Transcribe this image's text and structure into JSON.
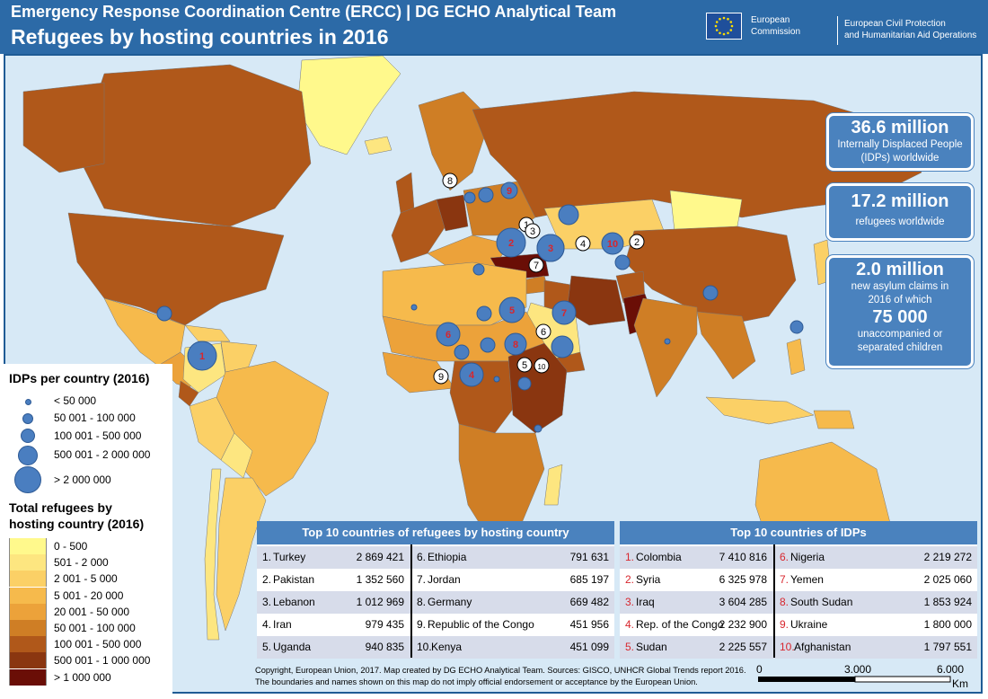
{
  "header": {
    "supertitle": "Emergency Response Coordination Centre (ERCC) | DG ECHO Analytical Team",
    "title": "Refugees by hosting countries in 2016",
    "ec_line1": "European",
    "ec_line2": "Commission",
    "echo_line1": "European Civil Protection",
    "echo_line2": "and Humanitarian Aid Operations"
  },
  "stats": {
    "idp_total": "36.6 million",
    "idp_desc1": "Internally Displaced People",
    "idp_desc2": "(IDPs) worldwide",
    "refugee_total": "17.2 million",
    "refugee_desc": "refugees worldwide",
    "asylum_total": "2.0 million",
    "asylum_desc1": "new asylum claims in",
    "asylum_desc2": "2016 of which",
    "children_total": "75 000",
    "children_desc1": "unaccompanied or",
    "children_desc2": "separated children"
  },
  "legend": {
    "idp_title": "IDPs per country (2016)",
    "idp_classes": [
      "< 50 000",
      "50 001 - 100 000",
      "100 001 - 500 000",
      "500 001 - 2 000 000",
      "> 2 000 000"
    ],
    "ref_title_1": "Total refugees by",
    "ref_title_2": "hosting country (2016)",
    "ref_classes": [
      {
        "label": "0 - 500",
        "color": "#fff98c"
      },
      {
        "label": "501 - 2 000",
        "color": "#fde680"
      },
      {
        "label": "2 001 - 5 000",
        "color": "#fbd066"
      },
      {
        "label": "5 001 - 20 000",
        "color": "#f6ba4c"
      },
      {
        "label": "20 001 - 50 000",
        "color": "#eca23a"
      },
      {
        "label": "50 001 - 100 000",
        "color": "#cf7e25"
      },
      {
        "label": "100 001 - 500 000",
        "color": "#b0581a"
      },
      {
        "label": "500 001 - 1 000 000",
        "color": "#8a3610"
      },
      {
        "label": "> 1 000 000",
        "color": "#6a0e06"
      }
    ]
  },
  "refugee_table": {
    "title": "Top 10 countries of refugees by hosting country",
    "rows": [
      {
        "rank": "1.",
        "country": "Turkey",
        "value": "2 869 421"
      },
      {
        "rank": "2.",
        "country": "Pakistan",
        "value": "1 352 560"
      },
      {
        "rank": "3.",
        "country": "Lebanon",
        "value": "1 012 969"
      },
      {
        "rank": "4.",
        "country": "Iran",
        "value": "979 435"
      },
      {
        "rank": "5.",
        "country": "Uganda",
        "value": "940 835"
      },
      {
        "rank": "6.",
        "country": "Ethiopia",
        "value": "791 631"
      },
      {
        "rank": "7.",
        "country": "Jordan",
        "value": "685 197"
      },
      {
        "rank": "8.",
        "country": "Germany",
        "value": "669 482"
      },
      {
        "rank": "9.",
        "country": "Republic of the Congo",
        "value": "451 956"
      },
      {
        "rank": "10.",
        "country": "Kenya",
        "value": "451 099"
      }
    ]
  },
  "idp_table": {
    "title": "Top 10 countries of IDPs",
    "rows": [
      {
        "rank": "1.",
        "country": "Colombia",
        "value": "7 410 816"
      },
      {
        "rank": "2.",
        "country": "Syria",
        "value": "6 325 978"
      },
      {
        "rank": "3.",
        "country": "Iraq",
        "value": "3 604 285"
      },
      {
        "rank": "4.",
        "country": "Rep. of the Congo",
        "value": "2 232 900"
      },
      {
        "rank": "5.",
        "country": "Sudan",
        "value": "2 225 557"
      },
      {
        "rank": "6.",
        "country": "Nigeria",
        "value": "2 219 272"
      },
      {
        "rank": "7.",
        "country": "Yemen",
        "value": "2 025 060"
      },
      {
        "rank": "8.",
        "country": "South Sudan",
        "value": "1 853 924"
      },
      {
        "rank": "9.",
        "country": "Ukraine",
        "value": "1 800 000"
      },
      {
        "rank": "10.",
        "country": "Afghanistan",
        "value": "1 797 551"
      }
    ]
  },
  "copyright": {
    "line1": "Copyright, European Union, 2017. Map created by DG ECHO Analytical Team.  Sources: GISCO, UNHCR Global Trends report 2016.",
    "line2": "The boundaries and names shown on this map do not imply official endorsement or acceptance  by the European Union."
  },
  "scale": {
    "t0": "0",
    "t1": "3.000",
    "t2": "6.000",
    "unit": "Km"
  },
  "map_markers": {
    "refugee_ranks": [
      "1",
      "2",
      "3",
      "4",
      "5",
      "6",
      "7",
      "8",
      "9",
      "10"
    ],
    "idp_ranks": [
      "1",
      "2",
      "3",
      "4",
      "5",
      "6",
      "7",
      "8",
      "9",
      "10"
    ]
  }
}
